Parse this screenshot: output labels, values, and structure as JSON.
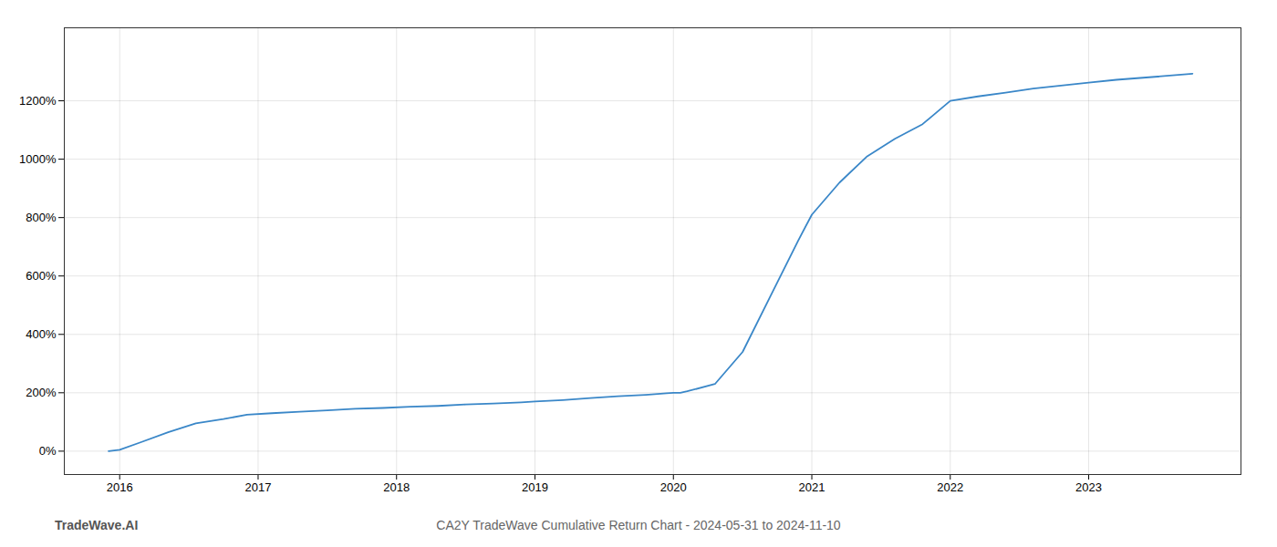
{
  "chart_data": {
    "type": "line",
    "title": "CA2Y TradeWave Cumulative Return Chart - 2024-05-31 to 2024-11-10",
    "annotations": [
      "TradeWave.AI"
    ],
    "color": "#3a87c8",
    "grid": true,
    "x": [
      2015.92,
      2016.0,
      2016.15,
      2016.35,
      2016.55,
      2016.75,
      2016.92,
      2017.1,
      2017.3,
      2017.5,
      2017.7,
      2017.9,
      2018.1,
      2018.3,
      2018.5,
      2018.7,
      2018.9,
      2019.0,
      2019.2,
      2019.4,
      2019.6,
      2019.8,
      2019.95,
      2020.0,
      2020.05,
      2020.1,
      2020.3,
      2020.5,
      2020.7,
      2020.9,
      2021.0,
      2021.2,
      2021.4,
      2021.6,
      2021.8,
      2022.0,
      2022.2,
      2022.4,
      2022.6,
      2022.8,
      2023.0,
      2023.2,
      2023.5,
      2023.75
    ],
    "values": [
      0,
      5,
      30,
      65,
      95,
      110,
      125,
      130,
      135,
      140,
      145,
      148,
      152,
      155,
      160,
      163,
      167,
      170,
      175,
      182,
      188,
      193,
      198,
      200,
      200,
      205,
      230,
      340,
      530,
      720,
      810,
      920,
      1010,
      1070,
      1120,
      1200,
      1215,
      1228,
      1242,
      1252,
      1262,
      1272,
      1283,
      1293
    ],
    "xlim": [
      2015.6,
      2024.1
    ],
    "xticks": [
      2016,
      2017,
      2018,
      2019,
      2020,
      2021,
      2022,
      2023
    ],
    "ylim": [
      -80,
      1450
    ],
    "yticks": [
      {
        "value": 0,
        "label": "0%"
      },
      {
        "value": 200,
        "label": "200%"
      },
      {
        "value": 400,
        "label": "400%"
      },
      {
        "value": 600,
        "label": "600%"
      },
      {
        "value": 800,
        "label": "800%"
      },
      {
        "value": 1000,
        "label": "1000%"
      },
      {
        "value": 1200,
        "label": "1200%"
      }
    ]
  }
}
